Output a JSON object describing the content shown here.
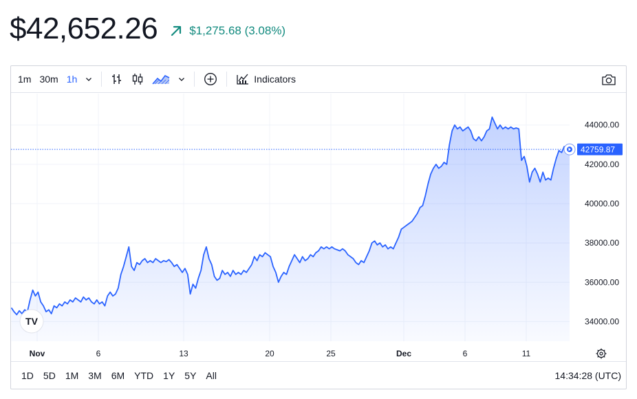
{
  "header": {
    "price": "$42,652.26",
    "change": "$1,275.68 (3.08%)",
    "change_color": "#118a7e",
    "trend_icon": "arrow-up-right-icon"
  },
  "toolbar": {
    "intervals": [
      "1m",
      "30m",
      "1h"
    ],
    "active_interval": "1h",
    "indicators_label": "Indicators",
    "icons": [
      "chevron-down-icon",
      "bars-icon",
      "candles-icon",
      "area-icon",
      "chevron-down-icon",
      "add-circle-icon",
      "indicators-icon",
      "camera-icon"
    ]
  },
  "ranges": [
    "1D",
    "5D",
    "1M",
    "3M",
    "6M",
    "YTD",
    "1Y",
    "5Y",
    "All"
  ],
  "clock": "14:34:28 (UTC)",
  "chart_data": {
    "type": "area",
    "x_labels": [
      "Nov",
      "6",
      "13",
      "20",
      "25",
      "Dec",
      "6",
      "11"
    ],
    "y_ticks": [
      "34000.00",
      "36000.00",
      "38000.00",
      "40000.00",
      "42000.00",
      "44000.00"
    ],
    "ylim": [
      33000,
      45600
    ],
    "last_value": 42759.87,
    "last_label": "42759.87",
    "line_color": "#2962ff",
    "logo": "TV",
    "series": [
      {
        "values": [
          [
            0,
            34700
          ],
          [
            1,
            34500
          ],
          [
            2,
            34350
          ],
          [
            3,
            34550
          ],
          [
            4,
            34400
          ],
          [
            5,
            34600
          ],
          [
            6,
            34500
          ],
          [
            7,
            35100
          ],
          [
            8,
            35600
          ],
          [
            9,
            35300
          ],
          [
            10,
            35500
          ],
          [
            11,
            35000
          ],
          [
            12,
            34800
          ],
          [
            13,
            34500
          ],
          [
            14,
            34600
          ],
          [
            15,
            34400
          ],
          [
            16,
            34800
          ],
          [
            17,
            34700
          ],
          [
            18,
            34900
          ],
          [
            19,
            34800
          ],
          [
            20,
            35000
          ],
          [
            21,
            34900
          ],
          [
            22,
            35100
          ],
          [
            23,
            35000
          ],
          [
            24,
            35200
          ],
          [
            25,
            35100
          ],
          [
            26,
            35000
          ],
          [
            27,
            35250
          ],
          [
            28,
            35100
          ],
          [
            29,
            35200
          ],
          [
            30,
            35000
          ],
          [
            31,
            34900
          ],
          [
            32,
            35100
          ],
          [
            33,
            34900
          ],
          [
            34,
            35000
          ],
          [
            35,
            34800
          ],
          [
            36,
            35300
          ],
          [
            37,
            35500
          ],
          [
            38,
            35300
          ],
          [
            39,
            35400
          ],
          [
            40,
            35700
          ],
          [
            41,
            36400
          ],
          [
            42,
            36800
          ],
          [
            43,
            37300
          ],
          [
            44,
            37800
          ],
          [
            45,
            36800
          ],
          [
            46,
            36600
          ],
          [
            47,
            37000
          ],
          [
            48,
            36900
          ],
          [
            49,
            37100
          ],
          [
            50,
            37200
          ],
          [
            51,
            37000
          ],
          [
            52,
            37100
          ],
          [
            53,
            37000
          ],
          [
            54,
            37200
          ],
          [
            55,
            37100
          ],
          [
            56,
            37000
          ],
          [
            57,
            37100
          ],
          [
            58,
            37050
          ],
          [
            59,
            37150
          ],
          [
            60,
            37000
          ],
          [
            61,
            36800
          ],
          [
            62,
            36900
          ],
          [
            63,
            36700
          ],
          [
            64,
            36500
          ],
          [
            65,
            36700
          ],
          [
            66,
            36400
          ],
          [
            67,
            35400
          ],
          [
            68,
            35900
          ],
          [
            69,
            35700
          ],
          [
            70,
            36200
          ],
          [
            71,
            36600
          ],
          [
            72,
            37400
          ],
          [
            73,
            37800
          ],
          [
            74,
            37200
          ],
          [
            75,
            36900
          ],
          [
            76,
            36300
          ],
          [
            77,
            36100
          ],
          [
            78,
            36200
          ],
          [
            79,
            36600
          ],
          [
            80,
            36400
          ],
          [
            81,
            36500
          ],
          [
            82,
            36300
          ],
          [
            83,
            36600
          ],
          [
            84,
            36400
          ],
          [
            85,
            36500
          ],
          [
            86,
            36400
          ],
          [
            87,
            36600
          ],
          [
            88,
            36500
          ],
          [
            89,
            36700
          ],
          [
            90,
            36900
          ],
          [
            91,
            37300
          ],
          [
            92,
            37100
          ],
          [
            93,
            37400
          ],
          [
            94,
            37300
          ],
          [
            95,
            37500
          ],
          [
            96,
            37400
          ],
          [
            97,
            37300
          ],
          [
            98,
            36800
          ],
          [
            99,
            36500
          ],
          [
            100,
            36000
          ],
          [
            101,
            36300
          ],
          [
            102,
            36500
          ],
          [
            103,
            36400
          ],
          [
            104,
            36800
          ],
          [
            105,
            37100
          ],
          [
            106,
            37400
          ],
          [
            107,
            37200
          ],
          [
            108,
            37000
          ],
          [
            109,
            37300
          ],
          [
            110,
            37100
          ],
          [
            111,
            37200
          ],
          [
            112,
            37400
          ],
          [
            113,
            37300
          ],
          [
            114,
            37500
          ],
          [
            115,
            37600
          ],
          [
            116,
            37800
          ],
          [
            117,
            37700
          ],
          [
            118,
            37800
          ],
          [
            119,
            37700
          ],
          [
            120,
            37800
          ],
          [
            121,
            37700
          ],
          [
            122,
            37650
          ],
          [
            123,
            37600
          ],
          [
            124,
            37700
          ],
          [
            125,
            37600
          ],
          [
            126,
            37400
          ],
          [
            127,
            37300
          ],
          [
            128,
            37200
          ],
          [
            129,
            37000
          ],
          [
            130,
            36900
          ],
          [
            131,
            37100
          ],
          [
            132,
            37000
          ],
          [
            133,
            37300
          ],
          [
            134,
            37600
          ],
          [
            135,
            38000
          ],
          [
            136,
            38100
          ],
          [
            137,
            37900
          ],
          [
            138,
            38000
          ],
          [
            139,
            37800
          ],
          [
            140,
            37900
          ],
          [
            141,
            37700
          ],
          [
            142,
            37800
          ],
          [
            143,
            37700
          ],
          [
            144,
            38000
          ],
          [
            145,
            38300
          ],
          [
            146,
            38700
          ],
          [
            147,
            38800
          ],
          [
            148,
            38900
          ],
          [
            149,
            39000
          ],
          [
            150,
            39100
          ],
          [
            151,
            39300
          ],
          [
            152,
            39500
          ],
          [
            153,
            39800
          ],
          [
            154,
            39900
          ],
          [
            155,
            40400
          ],
          [
            156,
            41000
          ],
          [
            157,
            41500
          ],
          [
            158,
            41800
          ],
          [
            159,
            42000
          ],
          [
            160,
            41800
          ],
          [
            161,
            41900
          ],
          [
            162,
            42100
          ],
          [
            163,
            42000
          ],
          [
            164,
            43000
          ],
          [
            165,
            43700
          ],
          [
            166,
            44000
          ],
          [
            167,
            43800
          ],
          [
            168,
            43900
          ],
          [
            169,
            43700
          ],
          [
            170,
            43800
          ],
          [
            171,
            43900
          ],
          [
            172,
            43700
          ],
          [
            173,
            43300
          ],
          [
            174,
            43200
          ],
          [
            175,
            43400
          ],
          [
            176,
            43200
          ],
          [
            177,
            43400
          ],
          [
            178,
            43700
          ],
          [
            179,
            43800
          ],
          [
            180,
            44400
          ],
          [
            181,
            44100
          ],
          [
            182,
            43800
          ],
          [
            183,
            44000
          ],
          [
            184,
            43800
          ],
          [
            185,
            43900
          ],
          [
            186,
            43800
          ],
          [
            187,
            43900
          ],
          [
            188,
            43800
          ],
          [
            189,
            43850
          ],
          [
            190,
            43800
          ],
          [
            191,
            42200
          ],
          [
            192,
            42400
          ],
          [
            193,
            41900
          ],
          [
            194,
            41100
          ],
          [
            195,
            41600
          ],
          [
            196,
            41800
          ],
          [
            197,
            41500
          ],
          [
            198,
            41100
          ],
          [
            199,
            41600
          ],
          [
            200,
            41200
          ],
          [
            201,
            41300
          ],
          [
            202,
            41200
          ],
          [
            203,
            41800
          ],
          [
            204,
            42300
          ],
          [
            205,
            42700
          ],
          [
            206,
            42600
          ],
          [
            207,
            42900
          ],
          [
            208,
            42700
          ],
          [
            209,
            42760
          ]
        ]
      }
    ]
  }
}
